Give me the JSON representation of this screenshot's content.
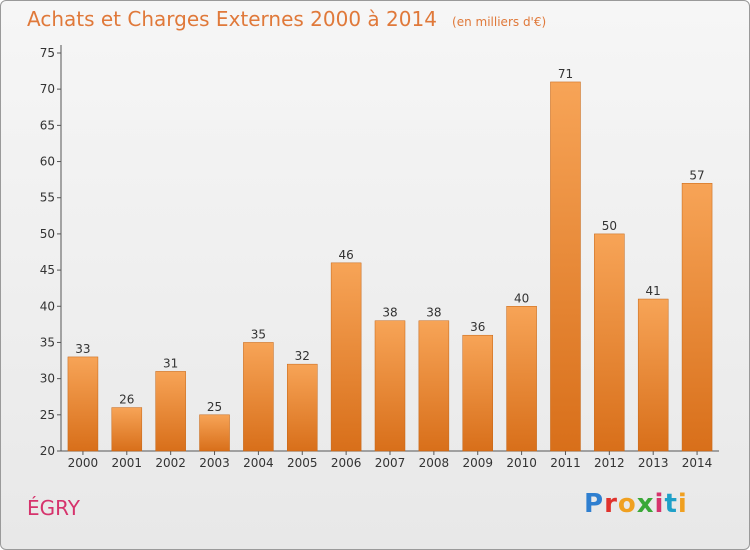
{
  "header": {
    "title": "Achats et Charges Externes 2000 à 2014",
    "subtitle": "(en milliers d'€)"
  },
  "footer": {
    "commune": "ÉGRY",
    "logo_text": "Proxiti",
    "logo_colors": [
      "#2f7fd0",
      "#e0322c",
      "#f0a020",
      "#3aa838",
      "#d6336c",
      "#1fa0c8",
      "#f0a020"
    ]
  },
  "colors": {
    "bar_light": "#f7a457",
    "bar_dark": "#d86f1a",
    "title": "#e0793a"
  },
  "chart_data": {
    "type": "bar",
    "title": "Achats et Charges Externes 2000 à 2014",
    "subtitle": "(en milliers d'€)",
    "xlabel": "",
    "ylabel": "",
    "categories": [
      "2000",
      "2001",
      "2002",
      "2003",
      "2004",
      "2005",
      "2006",
      "2007",
      "2008",
      "2009",
      "2010",
      "2011",
      "2012",
      "2013",
      "2014"
    ],
    "values": [
      33,
      26,
      31,
      25,
      35,
      32,
      46,
      38,
      38,
      36,
      40,
      71,
      50,
      41,
      57
    ],
    "ylim": [
      20,
      75
    ],
    "yticks": [
      20,
      25,
      30,
      35,
      40,
      45,
      50,
      55,
      60,
      65,
      70,
      75
    ],
    "grid": false,
    "data_labels": true
  }
}
